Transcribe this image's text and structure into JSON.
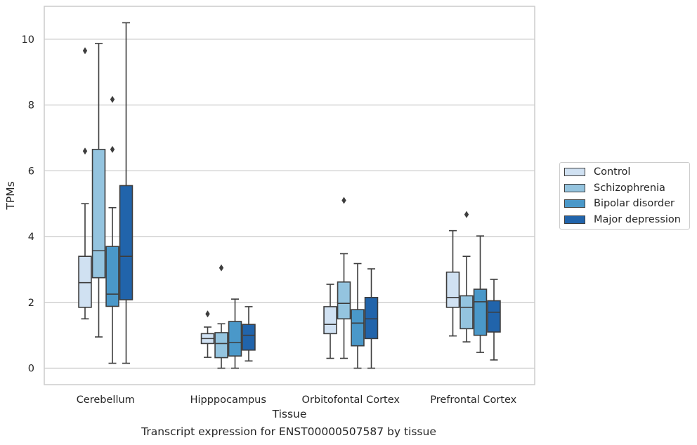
{
  "caption": "Transcript expression for ENST00000507587 by tissue",
  "chart_data": {
    "type": "box",
    "xlabel": "Tissue",
    "ylabel": "TPMs",
    "ylim": [
      -0.5,
      11.0
    ],
    "yticks": [
      0,
      2,
      4,
      6,
      8,
      10
    ],
    "grid": "horizontal",
    "legend_position": "right",
    "categories": [
      "Cerebellum",
      "Hipppocampus",
      "Orbitofontal Cortex",
      "Prefrontal Cortex"
    ],
    "series": [
      {
        "name": "Control",
        "color": "#d0e1f2",
        "boxes": [
          {
            "whisker_low": 1.5,
            "q1": 1.85,
            "median": 2.6,
            "q3": 3.4,
            "whisker_high": 5.0,
            "outliers": [
              6.6,
              9.65
            ]
          },
          {
            "whisker_low": 0.33,
            "q1": 0.75,
            "median": 0.9,
            "q3": 1.05,
            "whisker_high": 1.25,
            "outliers": [
              1.65
            ]
          },
          {
            "whisker_low": 0.3,
            "q1": 1.05,
            "median": 1.33,
            "q3": 1.87,
            "whisker_high": 2.55,
            "outliers": []
          },
          {
            "whisker_low": 0.98,
            "q1": 1.85,
            "median": 2.15,
            "q3": 2.92,
            "whisker_high": 4.18,
            "outliers": []
          }
        ]
      },
      {
        "name": "Schizophrenia",
        "color": "#94c4df",
        "boxes": [
          {
            "whisker_low": 0.95,
            "q1": 2.75,
            "median": 3.57,
            "q3": 6.65,
            "whisker_high": 9.87,
            "outliers": []
          },
          {
            "whisker_low": 0.0,
            "q1": 0.32,
            "median": 0.75,
            "q3": 1.08,
            "whisker_high": 1.35,
            "outliers": [
              3.05
            ]
          },
          {
            "whisker_low": 0.3,
            "q1": 1.5,
            "median": 1.97,
            "q3": 2.62,
            "whisker_high": 3.48,
            "outliers": [
              5.1
            ]
          },
          {
            "whisker_low": 0.8,
            "q1": 1.2,
            "median": 1.85,
            "q3": 2.2,
            "whisker_high": 3.4,
            "outliers": [
              4.67
            ]
          }
        ]
      },
      {
        "name": "Bipolar disorder",
        "color": "#4a98c9",
        "boxes": [
          {
            "whisker_low": 0.15,
            "q1": 1.88,
            "median": 2.25,
            "q3": 3.7,
            "whisker_high": 4.88,
            "outliers": [
              6.65,
              8.17
            ]
          },
          {
            "whisker_low": 0.0,
            "q1": 0.37,
            "median": 0.78,
            "q3": 1.42,
            "whisker_high": 2.1,
            "outliers": []
          },
          {
            "whisker_low": 0.0,
            "q1": 0.68,
            "median": 1.37,
            "q3": 1.78,
            "whisker_high": 3.18,
            "outliers": []
          },
          {
            "whisker_low": 0.48,
            "q1": 1.0,
            "median": 2.02,
            "q3": 2.4,
            "whisker_high": 4.02,
            "outliers": []
          }
        ]
      },
      {
        "name": "Major depression",
        "color": "#2164ab",
        "boxes": [
          {
            "whisker_low": 0.15,
            "q1": 2.08,
            "median": 3.4,
            "q3": 5.55,
            "whisker_high": 10.5,
            "outliers": []
          },
          {
            "whisker_low": 0.22,
            "q1": 0.55,
            "median": 1.0,
            "q3": 1.33,
            "whisker_high": 1.87,
            "outliers": []
          },
          {
            "whisker_low": 0.0,
            "q1": 0.9,
            "median": 1.5,
            "q3": 2.15,
            "whisker_high": 3.02,
            "outliers": []
          },
          {
            "whisker_low": 0.25,
            "q1": 1.1,
            "median": 1.7,
            "q3": 2.05,
            "whisker_high": 2.7,
            "outliers": []
          }
        ]
      }
    ]
  }
}
